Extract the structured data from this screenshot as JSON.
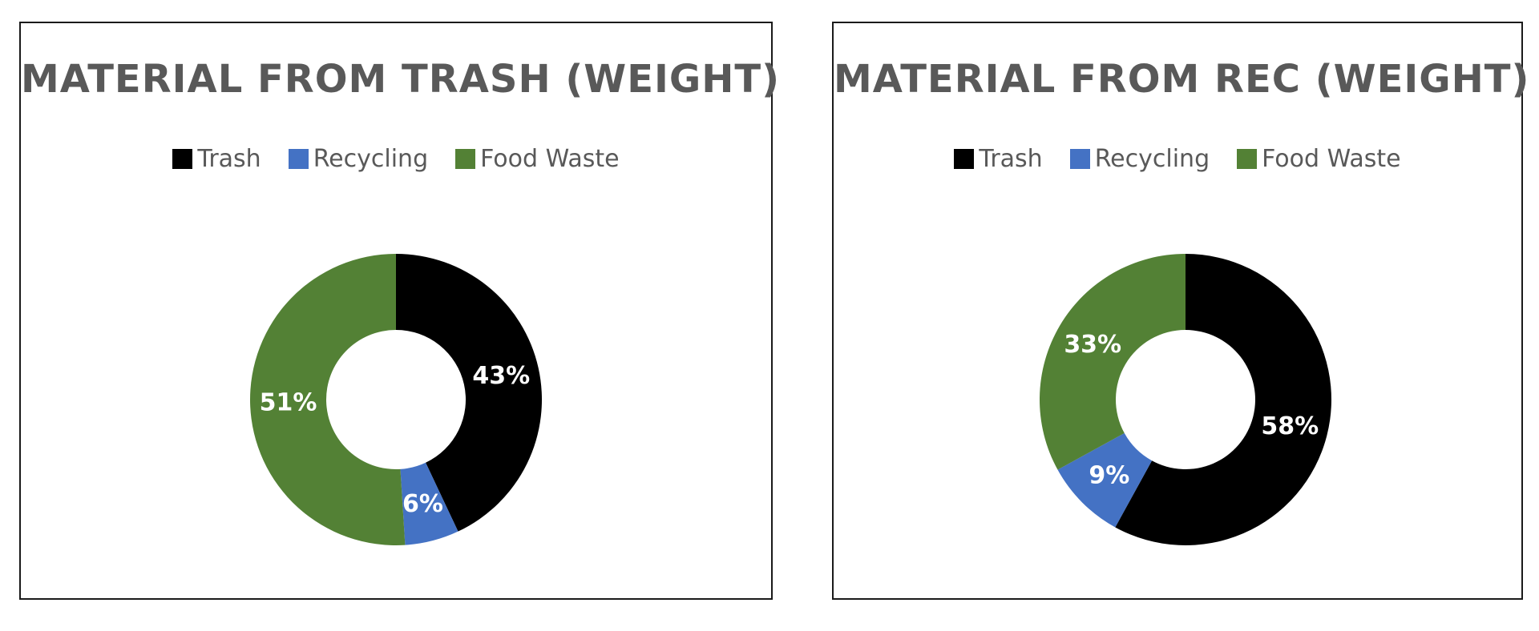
{
  "chart_data": [
    {
      "type": "pie",
      "title": "MATERIAL FROM TRASH (WEIGHT)",
      "categories": [
        "Trash",
        "Recycling",
        "Food Waste"
      ],
      "values": [
        43,
        6,
        51
      ],
      "labels": [
        "43%",
        "6%",
        "51%"
      ],
      "colors": [
        "#000000",
        "#4472C4",
        "#538135"
      ],
      "legend": "top"
    },
    {
      "type": "pie",
      "title": "MATERIAL FROM REC (WEIGHT)",
      "categories": [
        "Trash",
        "Recycling",
        "Food Waste"
      ],
      "values": [
        58,
        9,
        33
      ],
      "labels": [
        "58%",
        "9%",
        "33%"
      ],
      "colors": [
        "#000000",
        "#4472C4",
        "#538135"
      ],
      "legend": "top"
    }
  ]
}
